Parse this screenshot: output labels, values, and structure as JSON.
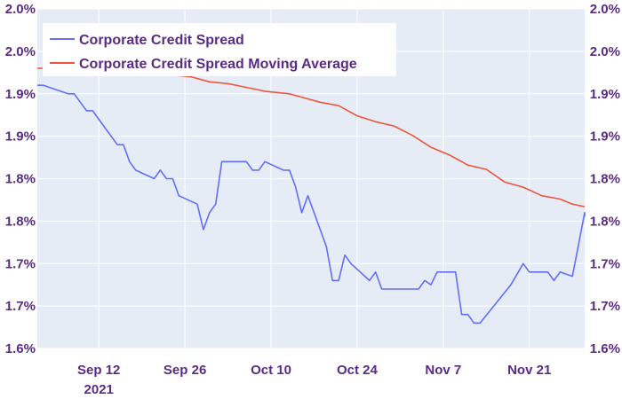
{
  "chart_data": {
    "type": "line",
    "grid": true,
    "legend_position": "top-left",
    "background": "#e5ecf6",
    "x_ticks": [
      {
        "date": "2021-09-12",
        "label": "Sep 12",
        "sublabel": "2021"
      },
      {
        "date": "2021-09-26",
        "label": "Sep 26",
        "sublabel": ""
      },
      {
        "date": "2021-10-10",
        "label": "Oct 10",
        "sublabel": ""
      },
      {
        "date": "2021-10-24",
        "label": "Oct 24",
        "sublabel": ""
      },
      {
        "date": "2021-11-07",
        "label": "Nov 7",
        "sublabel": ""
      },
      {
        "date": "2021-11-21",
        "label": "Nov 21",
        "sublabel": ""
      }
    ],
    "x_range": [
      "2021-09-02",
      "2021-11-30"
    ],
    "y_range": [
      1.6,
      2.0
    ],
    "y_ticks": [
      {
        "value": 1.6,
        "label": "1.6%"
      },
      {
        "value": 1.65,
        "label": "1.7%"
      },
      {
        "value": 1.7,
        "label": "1.7%"
      },
      {
        "value": 1.75,
        "label": "1.8%"
      },
      {
        "value": 1.8,
        "label": "1.8%"
      },
      {
        "value": 1.85,
        "label": "1.9%"
      },
      {
        "value": 1.9,
        "label": "1.9%"
      },
      {
        "value": 1.95,
        "label": "2.0%"
      },
      {
        "value": 2.0,
        "label": "2.0%"
      }
    ],
    "series": [
      {
        "name": "Corporate Credit Spread",
        "color": "#636efa",
        "points": [
          [
            "2021-09-02",
            1.91
          ],
          [
            "2021-09-03",
            1.91
          ],
          [
            "2021-09-07",
            1.9
          ],
          [
            "2021-09-08",
            1.9
          ],
          [
            "2021-09-09",
            1.89
          ],
          [
            "2021-09-10",
            1.88
          ],
          [
            "2021-09-11",
            1.88
          ],
          [
            "2021-09-12",
            1.87
          ],
          [
            "2021-09-13",
            1.86
          ],
          [
            "2021-09-14",
            1.85
          ],
          [
            "2021-09-15",
            1.84
          ],
          [
            "2021-09-16",
            1.84
          ],
          [
            "2021-09-17",
            1.82
          ],
          [
            "2021-09-18",
            1.81
          ],
          [
            "2021-09-21",
            1.8
          ],
          [
            "2021-09-22",
            1.81
          ],
          [
            "2021-09-23",
            1.8
          ],
          [
            "2021-09-24",
            1.8
          ],
          [
            "2021-09-25",
            1.78
          ],
          [
            "2021-09-28",
            1.77
          ],
          [
            "2021-09-29",
            1.74
          ],
          [
            "2021-09-30",
            1.76
          ],
          [
            "2021-10-01",
            1.77
          ],
          [
            "2021-10-02",
            1.82
          ],
          [
            "2021-10-03",
            1.82
          ],
          [
            "2021-10-06",
            1.82
          ],
          [
            "2021-10-07",
            1.81
          ],
          [
            "2021-10-08",
            1.81
          ],
          [
            "2021-10-09",
            1.82
          ],
          [
            "2021-10-12",
            1.81
          ],
          [
            "2021-10-13",
            1.81
          ],
          [
            "2021-10-14",
            1.79
          ],
          [
            "2021-10-15",
            1.76
          ],
          [
            "2021-10-16",
            1.78
          ],
          [
            "2021-10-19",
            1.72
          ],
          [
            "2021-10-20",
            1.68
          ],
          [
            "2021-10-21",
            1.68
          ],
          [
            "2021-10-22",
            1.71
          ],
          [
            "2021-10-23",
            1.7
          ],
          [
            "2021-10-26",
            1.68
          ],
          [
            "2021-10-27",
            1.69
          ],
          [
            "2021-10-28",
            1.67
          ],
          [
            "2021-11-02",
            1.67
          ],
          [
            "2021-11-03",
            1.67
          ],
          [
            "2021-11-04",
            1.68
          ],
          [
            "2021-11-05",
            1.675
          ],
          [
            "2021-11-06",
            1.69
          ],
          [
            "2021-11-09",
            1.69
          ],
          [
            "2021-11-10",
            1.64
          ],
          [
            "2021-11-11",
            1.64
          ],
          [
            "2021-11-12",
            1.63
          ],
          [
            "2021-11-13",
            1.63
          ],
          [
            "2021-11-18",
            1.675
          ],
          [
            "2021-11-20",
            1.7
          ],
          [
            "2021-11-21",
            1.69
          ],
          [
            "2021-11-24",
            1.69
          ],
          [
            "2021-11-25",
            1.68
          ],
          [
            "2021-11-26",
            1.69
          ],
          [
            "2021-11-28",
            1.685
          ],
          [
            "2021-11-30",
            1.76
          ],
          [
            "2021-11-30",
            1.755
          ]
        ]
      },
      {
        "name": "Corporate Credit Spread Moving Average",
        "color": "#ef553b",
        "points": [
          [
            "2021-09-02",
            1.93
          ],
          [
            "2021-09-04",
            1.93
          ],
          [
            "2021-09-07",
            1.93
          ],
          [
            "2021-09-10",
            1.93
          ],
          [
            "2021-09-14",
            1.928
          ],
          [
            "2021-09-18",
            1.925
          ],
          [
            "2021-09-21",
            1.925
          ],
          [
            "2021-09-24",
            1.922
          ],
          [
            "2021-09-27",
            1.92
          ],
          [
            "2021-09-30",
            1.914
          ],
          [
            "2021-10-03",
            1.912
          ],
          [
            "2021-10-05",
            1.909
          ],
          [
            "2021-10-09",
            1.903
          ],
          [
            "2021-10-13",
            1.9
          ],
          [
            "2021-10-15",
            1.896
          ],
          [
            "2021-10-18",
            1.89
          ],
          [
            "2021-10-21",
            1.886
          ],
          [
            "2021-10-24",
            1.874
          ],
          [
            "2021-10-27",
            1.867
          ],
          [
            "2021-10-30",
            1.862
          ],
          [
            "2021-11-02",
            1.851
          ],
          [
            "2021-11-05",
            1.837
          ],
          [
            "2021-11-08",
            1.828
          ],
          [
            "2021-11-11",
            1.816
          ],
          [
            "2021-11-14",
            1.811
          ],
          [
            "2021-11-17",
            1.796
          ],
          [
            "2021-11-20",
            1.79
          ],
          [
            "2021-11-23",
            1.78
          ],
          [
            "2021-11-26",
            1.776
          ],
          [
            "2021-11-28",
            1.77
          ],
          [
            "2021-11-30",
            1.767
          ]
        ]
      }
    ]
  }
}
